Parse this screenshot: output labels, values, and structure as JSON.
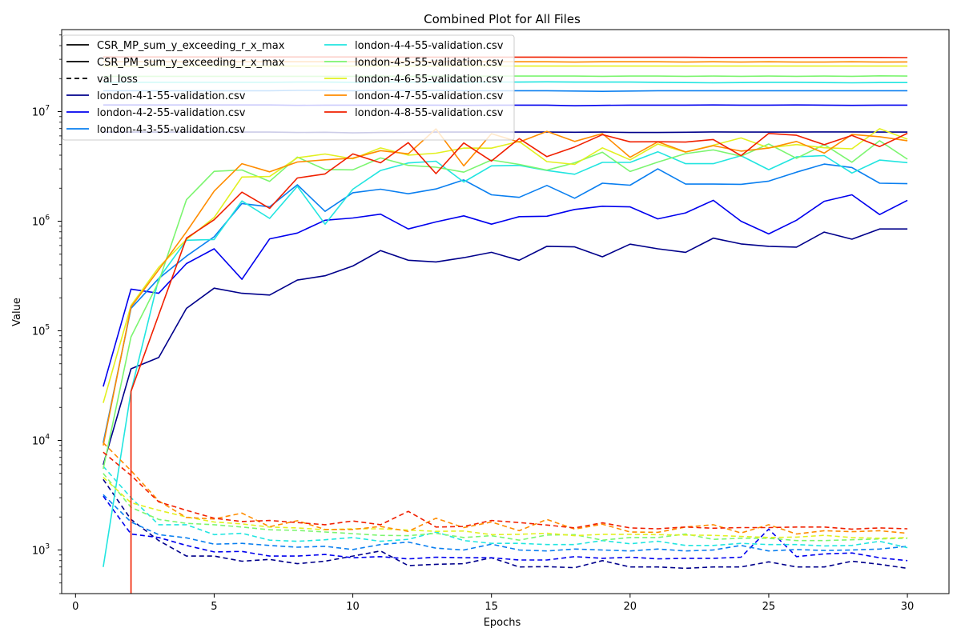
{
  "chart_data": {
    "type": "line",
    "title": "Combined Plot for All Files",
    "xlabel": "Epochs",
    "ylabel": "Value",
    "xlim": [
      -0.5,
      31.5
    ],
    "ylim": [
      400,
      56000000
    ],
    "yscale": "log",
    "x_ticks": [
      0,
      5,
      10,
      15,
      20,
      25,
      30
    ],
    "y_ticks": [
      {
        "value": 1000,
        "base": "10",
        "exp": "3"
      },
      {
        "value": 10000,
        "base": "10",
        "exp": "4"
      },
      {
        "value": 100000,
        "base": "10",
        "exp": "5"
      },
      {
        "value": 1000000,
        "base": "10",
        "exp": "6"
      },
      {
        "value": 10000000,
        "base": "10",
        "exp": "7"
      }
    ],
    "grid": false,
    "legend_position": "upper-left",
    "x": [
      1,
      2,
      3,
      4,
      5,
      6,
      7,
      8,
      9,
      10,
      11,
      12,
      13,
      14,
      15,
      16,
      17,
      18,
      19,
      20,
      21,
      22,
      23,
      24,
      25,
      26,
      27,
      28,
      29,
      30
    ],
    "legend": [
      {
        "label": "CSR_MP_sum_y_exceeding_r_x_max",
        "color": "#000000",
        "dash": "solid"
      },
      {
        "label": "CSR_PM_sum_y_exceeding_r_x_max",
        "color": "#000000",
        "dash": "solid"
      },
      {
        "label": "val_loss",
        "color": "#000000",
        "dash": "dashed"
      },
      {
        "label": "london-4-1-55-validation.csv",
        "color": "#00008b",
        "dash": "solid"
      },
      {
        "label": "london-4-2-55-validation.csv",
        "color": "#0000ee",
        "dash": "solid"
      },
      {
        "label": "london-4-3-55-validation.csv",
        "color": "#0a7ff0",
        "dash": "solid"
      },
      {
        "label": "london-4-4-55-validation.csv",
        "color": "#22e5e0",
        "dash": "solid"
      },
      {
        "label": "london-4-5-55-validation.csv",
        "color": "#7cf570",
        "dash": "solid"
      },
      {
        "label": "london-4-6-55-validation.csv",
        "color": "#e2f020",
        "dash": "solid"
      },
      {
        "label": "london-4-7-55-validation.csv",
        "color": "#ff8c00",
        "dash": "solid"
      },
      {
        "label": "london-4-8-55-validation.csv",
        "color": "#f02000",
        "dash": "solid"
      }
    ],
    "series": [
      {
        "name": "london-4-1-55-validation.csv",
        "color": "#00008b",
        "mp": [
          6000,
          45000,
          57000,
          160000,
          245000,
          220000,
          212000,
          290000,
          318000,
          390000,
          540000,
          440000,
          425000,
          465000,
          520000,
          440000,
          590000,
          583000,
          473000,
          617000,
          560000,
          520000,
          700000,
          620000,
          590000,
          580000,
          795000,
          685000,
          850000,
          850000
        ],
        "pm": [
          6500000,
          6500000,
          6500000,
          6500000,
          6500000,
          6500000,
          6500000,
          6450000,
          6480000,
          6400000,
          6450000,
          6480000,
          6500000,
          6500000,
          6500000,
          6500000,
          6500000,
          6480000,
          6500000,
          6450000,
          6450000,
          6480000,
          6520000,
          6500000,
          6500000,
          6500000,
          6520000,
          6530000,
          6500000,
          6500000
        ],
        "val_loss": [
          4400,
          1900,
          1220,
          880,
          880,
          790,
          820,
          750,
          790,
          880,
          980,
          720,
          740,
          750,
          850,
          700,
          705,
          690,
          800,
          700,
          700,
          680,
          700,
          700,
          780,
          700,
          700,
          790,
          740,
          680
        ]
      },
      {
        "name": "london-4-2-55-validation.csv",
        "color": "#0000ee",
        "mp": [
          31000,
          240000,
          220000,
          410000,
          560000,
          295000,
          690000,
          780000,
          1020000,
          1070000,
          1160000,
          850000,
          985000,
          1120000,
          940000,
          1100000,
          1110000,
          1280000,
          1370000,
          1350000,
          1050000,
          1190000,
          1550000,
          1000000,
          765000,
          1020000,
          1520000,
          1740000,
          1150000,
          1550000
        ],
        "pm": [
          11500000,
          11500000,
          11500000,
          11500000,
          11500000,
          11500000,
          11500000,
          11400000,
          11450000,
          11450000,
          11450000,
          11450000,
          11450000,
          11400000,
          11450000,
          11450000,
          11450000,
          11300000,
          11400000,
          11450000,
          11450000,
          11450000,
          11500000,
          11450000,
          11450000,
          11500000,
          11450000,
          11400000,
          11450000,
          11450000
        ],
        "val_loss": [
          3100,
          1400,
          1300,
          1100,
          960,
          970,
          880,
          880,
          910,
          850,
          870,
          830,
          860,
          850,
          850,
          810,
          810,
          870,
          840,
          860,
          830,
          840,
          840,
          860,
          1550,
          870,
          920,
          940,
          850,
          800
        ]
      },
      {
        "name": "london-4-3-55-validation.csv",
        "color": "#0a7ff0",
        "mp": [
          9500,
          160000,
          300000,
          480000,
          720000,
          1450000,
          1350000,
          2150000,
          1230000,
          1820000,
          1960000,
          1780000,
          1970000,
          2380000,
          1740000,
          1650000,
          2120000,
          1620000,
          2220000,
          2130000,
          3000000,
          2180000,
          2180000,
          2170000,
          2320000,
          2800000,
          3320000,
          3090000,
          2220000,
          2200000
        ],
        "pm": [
          15500000,
          15500000,
          15500000,
          15500000,
          15500000,
          15500000,
          15500000,
          15600000,
          15600000,
          15500000,
          15600000,
          15600000,
          15600000,
          15500000,
          15500000,
          15500000,
          15500000,
          15400000,
          15300000,
          15400000,
          15500000,
          15500000,
          15500000,
          15500000,
          15500000,
          15500000,
          15500000,
          15500000,
          15500000,
          15500000
        ],
        "val_loss": [
          3200,
          1800,
          1380,
          1290,
          1130,
          1150,
          1100,
          1060,
          1080,
          1010,
          1120,
          1180,
          1040,
          1000,
          1130,
          1000,
          980,
          1020,
          1000,
          980,
          1020,
          980,
          1000,
          1100,
          980,
          1010,
          990,
          1000,
          1020,
          1080
        ]
      },
      {
        "name": "london-4-4-55-validation.csv",
        "color": "#22e5e0",
        "mp": [
          700,
          28000,
          300000,
          670000,
          680000,
          1530000,
          1060000,
          2080000,
          940000,
          1960000,
          2900000,
          3400000,
          3530000,
          2280000,
          3200000,
          3230000,
          2900000,
          2680000,
          3440000,
          3440000,
          4300000,
          3350000,
          3350000,
          3960000,
          2950000,
          3860000,
          3970000,
          2750000,
          3610000,
          3420000
        ],
        "pm": [
          18500000,
          18500000,
          18500000,
          18500000,
          18500000,
          18500000,
          18500000,
          18600000,
          18600000,
          18500000,
          18600000,
          18600000,
          18500000,
          18500000,
          18600000,
          18600000,
          18700000,
          18600000,
          18600000,
          18600000,
          18500000,
          18400000,
          18300000,
          18400000,
          18500000,
          18500000,
          18400000,
          18300000,
          18400000,
          18400000
        ],
        "val_loss": [
          5800,
          3000,
          1700,
          1700,
          1380,
          1420,
          1230,
          1200,
          1240,
          1300,
          1200,
          1250,
          1460,
          1220,
          1150,
          1150,
          1120,
          1120,
          1220,
          1140,
          1200,
          1100,
          1100,
          1150,
          1120,
          1120,
          1090,
          1100,
          1200,
          1050
        ]
      },
      {
        "name": "london-4-5-55-validation.csv",
        "color": "#7cf570",
        "mp": [
          5500,
          88000,
          280000,
          1570000,
          2850000,
          2930000,
          2310000,
          3840000,
          2960000,
          2940000,
          3780000,
          3230000,
          3110000,
          2800000,
          3620000,
          3300000,
          2920000,
          3410000,
          4260000,
          2840000,
          3460000,
          4140000,
          4470000,
          3920000,
          5060000,
          3750000,
          5000000,
          3450000,
          5420000,
          3680000
        ],
        "pm": [
          21000000,
          21000000,
          21000000,
          21000000,
          21000000,
          21000000,
          21000000,
          21000000,
          21000000,
          21000000,
          21100000,
          21000000,
          21100000,
          21000000,
          21100000,
          21100000,
          21100000,
          21100000,
          21000000,
          21100000,
          21100000,
          21000000,
          21100000,
          21000000,
          21100000,
          21000000,
          21100000,
          21000000,
          21200000,
          21100000
        ],
        "val_loss": [
          5000,
          2450,
          1900,
          1750,
          1700,
          1620,
          1530,
          1510,
          1460,
          1410,
          1360,
          1350,
          1420,
          1300,
          1350,
          1230,
          1370,
          1380,
          1230,
          1300,
          1300,
          1400,
          1250,
          1280,
          1280,
          1220,
          1220,
          1240,
          1260,
          1280
        ]
      },
      {
        "name": "london-4-6-55-validation.csv",
        "color": "#e2f020",
        "mp": [
          22000,
          170000,
          380000,
          680000,
          1080000,
          2530000,
          2560000,
          3790000,
          4100000,
          3710000,
          4660000,
          4010000,
          4170000,
          4650000,
          4640000,
          5340000,
          3500000,
          3300000,
          4670000,
          3630000,
          5060000,
          4270000,
          4940000,
          5750000,
          4680000,
          5000000,
          4680000,
          4580000,
          6980000,
          5600000
        ],
        "pm": [
          26000000,
          26000000,
          26000000,
          26000000,
          26000000,
          26000000,
          26000000,
          26000000,
          26000000,
          26000000,
          26000000,
          26000000,
          26000000,
          26000000,
          26000000,
          26000000,
          26000000,
          26000000,
          26000000,
          26000000,
          26000000,
          26000000,
          26000000,
          26000000,
          26000000,
          26000000,
          26000000,
          26000000,
          26000000,
          26000000
        ],
        "val_loss": [
          4600,
          2700,
          2300,
          2000,
          1800,
          1730,
          1620,
          1590,
          1530,
          1560,
          1560,
          1520,
          1480,
          1490,
          1380,
          1390,
          1420,
          1350,
          1390,
          1390,
          1380,
          1370,
          1360,
          1330,
          1300,
          1310,
          1360,
          1300,
          1280,
          1300
        ]
      },
      {
        "name": "london-4-7-55-validation.csv",
        "color": "#ff8c00",
        "mp": [
          9000,
          165000,
          360000,
          800000,
          1880000,
          3350000,
          2820000,
          3470000,
          3630000,
          3760000,
          4400000,
          4120000,
          6950000,
          3200000,
          6290000,
          5270000,
          6600000,
          5340000,
          6300000,
          3830000,
          5300000,
          4280000,
          4890000,
          4360000,
          4650000,
          5340000,
          4180000,
          6180000,
          5900000,
          5420000
        ],
        "pm": [
          28500000,
          28500000,
          28500000,
          28500000,
          28500000,
          28500000,
          28500000,
          28500000,
          28500000,
          28500000,
          28500000,
          28500000,
          28500000,
          28500000,
          28500000,
          28500000,
          28500000,
          28300000,
          28500000,
          28500000,
          28500000,
          28300000,
          28500000,
          28300000,
          28500000,
          28300000,
          28300000,
          28500000,
          28300000,
          28400000
        ],
        "val_loss": [
          9500,
          5300,
          2800,
          1980,
          1920,
          2170,
          1630,
          1850,
          1540,
          1540,
          1640,
          1480,
          1950,
          1600,
          1800,
          1500,
          1900,
          1550,
          1720,
          1460,
          1450,
          1620,
          1700,
          1430,
          1700,
          1400,
          1500,
          1470,
          1500,
          1420
        ]
      },
      {
        "name": "london-4-8-55-validation.csv",
        "color": "#f02000",
        "mp": [
          null,
          28000,
          140000,
          700000,
          1030000,
          1840000,
          1310000,
          2480000,
          2700000,
          4110000,
          3410000,
          5210000,
          2720000,
          5170000,
          3540000,
          5680000,
          3880000,
          4760000,
          6160000,
          5300000,
          5310000,
          5270000,
          5560000,
          3960000,
          6320000,
          6080000,
          4990000,
          6070000,
          4800000,
          6340000
        ],
        "pm": [
          31500000,
          31500000,
          31500000,
          31500000,
          31500000,
          31500000,
          31500000,
          31500000,
          31500000,
          31500000,
          31500000,
          31400000,
          31400000,
          31400000,
          31400000,
          31400000,
          31400000,
          31300000,
          31300000,
          31300000,
          31300000,
          31300000,
          31200000,
          31200000,
          31200000,
          31200000,
          31200000,
          31200000,
          31200000,
          31100000
        ],
        "val_loss": [
          7800,
          4800,
          2750,
          2300,
          1950,
          1820,
          1860,
          1780,
          1700,
          1840,
          1700,
          2250,
          1620,
          1640,
          1860,
          1780,
          1690,
          1590,
          1770,
          1590,
          1560,
          1620,
          1580,
          1600,
          1600,
          1620,
          1620,
          1550,
          1590,
          1560
        ]
      }
    ]
  }
}
